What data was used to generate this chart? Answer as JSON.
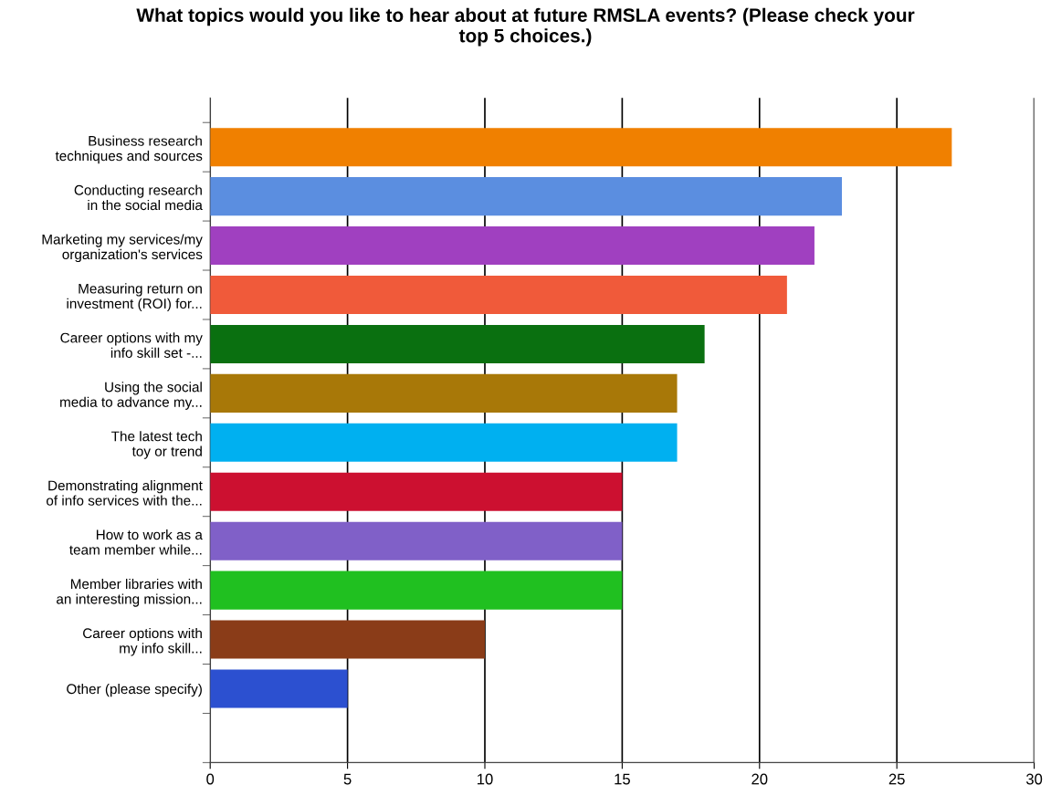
{
  "chart_data": {
    "type": "bar",
    "orientation": "horizontal",
    "title": "What topics would you like to hear about at future RMSLA events? (Please check your\ntop 5 choices.)",
    "categories": [
      "Business research\ntechniques and sources",
      "Conducting research\nin the social media",
      "Marketing my services/my\norganization's services",
      "Measuring return on\ninvestment (ROI) for...",
      "Career options with my\ninfo skill set -...",
      "Using the social\nmedia to advance my...",
      "The latest tech\ntoy or trend",
      "Demonstrating alignment\nof info services with the...",
      "How to work as a\nteam member while...",
      "Member libraries with\nan interesting mission...",
      "Career options with\nmy info skill...",
      "Other (please specify)"
    ],
    "values": [
      27,
      23,
      22,
      21,
      18,
      17,
      17,
      15,
      15,
      15,
      10,
      5
    ],
    "colors": [
      "#f08000",
      "#5b8ee0",
      "#a040c0",
      "#f05a3a",
      "#0a7010",
      "#a87808",
      "#00b0f0",
      "#cc1030",
      "#8060c8",
      "#20c020",
      "#8a3c18",
      "#2c50d0"
    ],
    "xlim": [
      0,
      30
    ],
    "xticks": [
      0,
      5,
      10,
      15,
      20,
      25,
      30
    ],
    "grid": "x"
  }
}
